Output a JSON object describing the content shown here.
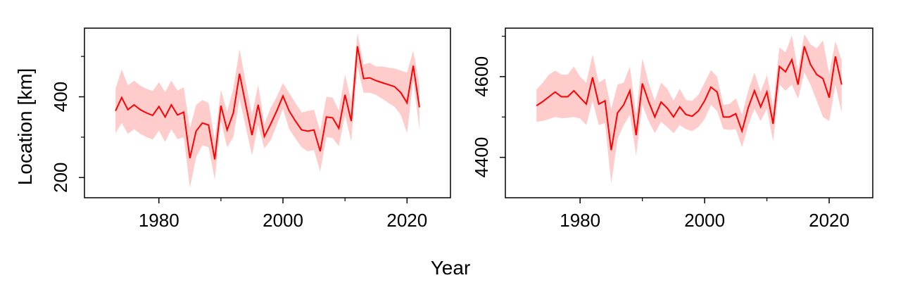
{
  "figure": {
    "ylabel": "Location [km]",
    "xlabel": "Year"
  },
  "chart_data": [
    {
      "type": "line",
      "ylabel": "Location [km]",
      "xlabel": "Year",
      "xlim": [
        1968,
        2027
      ],
      "ylim": [
        150,
        570
      ],
      "xticks": [
        1980,
        2000,
        2020
      ],
      "xminor": [
        1990,
        2010
      ],
      "yticks": [
        200,
        400
      ],
      "yminor": [
        300,
        500
      ],
      "line_color": "#ff0000",
      "band_color": "#ffcccc",
      "x": [
        1973,
        1974,
        1975,
        1976,
        1977,
        1978,
        1979,
        1980,
        1981,
        1982,
        1983,
        1984,
        1985,
        1986,
        1987,
        1988,
        1989,
        1990,
        1991,
        1992,
        1993,
        1994,
        1995,
        1996,
        1997,
        1998,
        1999,
        2000,
        2001,
        2002,
        2003,
        2004,
        2005,
        2006,
        2007,
        2008,
        2009,
        2010,
        2011,
        2012,
        2013,
        2014,
        2015,
        2016,
        2017,
        2018,
        2019,
        2020,
        2021,
        2022
      ],
      "series": [
        {
          "values": [
            365,
            398,
            368,
            380,
            368,
            360,
            354,
            376,
            350,
            380,
            355,
            362,
            248,
            315,
            335,
            330,
            245,
            378,
            318,
            360,
            457,
            380,
            305,
            380,
            302,
            332,
            365,
            402,
            365,
            340,
            318,
            315,
            318,
            265,
            350,
            348,
            322,
            405,
            340,
            525,
            445,
            447,
            440,
            435,
            430,
            425,
            410,
            385,
            477,
            374
          ],
          "lower": [
            310,
            335,
            308,
            320,
            308,
            300,
            294,
            316,
            288,
            320,
            295,
            300,
            175,
            250,
            280,
            275,
            195,
            340,
            275,
            300,
            395,
            325,
            255,
            330,
            272,
            292,
            330,
            370,
            320,
            297,
            275,
            265,
            268,
            215,
            300,
            298,
            278,
            355,
            290,
            475,
            410,
            410,
            405,
            395,
            385,
            375,
            355,
            310,
            440,
            320
          ],
          "upper": [
            420,
            468,
            428,
            440,
            428,
            420,
            414,
            436,
            412,
            440,
            415,
            424,
            322,
            380,
            392,
            385,
            295,
            418,
            362,
            420,
            518,
            435,
            355,
            430,
            332,
            372,
            400,
            434,
            410,
            385,
            361,
            365,
            368,
            315,
            400,
            398,
            366,
            455,
            390,
            557,
            480,
            484,
            475,
            475,
            472,
            470,
            465,
            460,
            514,
            430
          ]
        }
      ]
    },
    {
      "type": "line",
      "ylabel": "",
      "xlabel": "",
      "xlim": [
        1968,
        2027
      ],
      "ylim": [
        4300,
        4720
      ],
      "xticks": [
        1980,
        2000,
        2020
      ],
      "xminor": [
        1990,
        2010
      ],
      "yticks": [
        4400,
        4600
      ],
      "yminor": [
        4500,
        4700
      ],
      "line_color": "#ff0000",
      "band_color": "#ffcccc",
      "x": [
        1973,
        1974,
        1975,
        1976,
        1977,
        1978,
        1979,
        1980,
        1981,
        1982,
        1983,
        1984,
        1985,
        1986,
        1987,
        1988,
        1989,
        1990,
        1991,
        1992,
        1993,
        1994,
        1995,
        1996,
        1997,
        1998,
        1999,
        2000,
        2001,
        2002,
        2003,
        2004,
        2005,
        2006,
        2007,
        2008,
        2009,
        2010,
        2011,
        2012,
        2013,
        2014,
        2015,
        2016,
        2017,
        2018,
        2019,
        2020,
        2021,
        2022
      ],
      "series": [
        {
          "values": [
            4528,
            4538,
            4550,
            4562,
            4550,
            4550,
            4565,
            4548,
            4532,
            4598,
            4532,
            4540,
            4418,
            4510,
            4530,
            4565,
            4455,
            4583,
            4538,
            4500,
            4537,
            4522,
            4500,
            4525,
            4506,
            4502,
            4515,
            4540,
            4574,
            4562,
            4500,
            4500,
            4508,
            4465,
            4523,
            4565,
            4525,
            4562,
            4483,
            4625,
            4612,
            4642,
            4580,
            4675,
            4630,
            4605,
            4595,
            4548,
            4650,
            4580
          ],
          "lower": [
            4488,
            4490,
            4495,
            4500,
            4497,
            4498,
            4500,
            4496,
            4480,
            4540,
            4480,
            4485,
            4335,
            4445,
            4480,
            4505,
            4405,
            4530,
            4490,
            4460,
            4488,
            4475,
            4460,
            4480,
            4470,
            4465,
            4475,
            4495,
            4530,
            4515,
            4470,
            4468,
            4470,
            4425,
            4480,
            4520,
            4490,
            4520,
            4440,
            4580,
            4565,
            4580,
            4545,
            4610,
            4580,
            4540,
            4500,
            4490,
            4580,
            4510
          ],
          "upper": [
            4568,
            4585,
            4605,
            4615,
            4605,
            4605,
            4625,
            4600,
            4585,
            4655,
            4585,
            4595,
            4520,
            4580,
            4585,
            4625,
            4505,
            4645,
            4585,
            4540,
            4585,
            4570,
            4540,
            4570,
            4542,
            4540,
            4555,
            4585,
            4616,
            4600,
            4530,
            4532,
            4546,
            4505,
            4566,
            4610,
            4562,
            4604,
            4526,
            4672,
            4660,
            4702,
            4615,
            4705,
            4680,
            4670,
            4690,
            4606,
            4688,
            4640
          ]
        }
      ]
    }
  ]
}
